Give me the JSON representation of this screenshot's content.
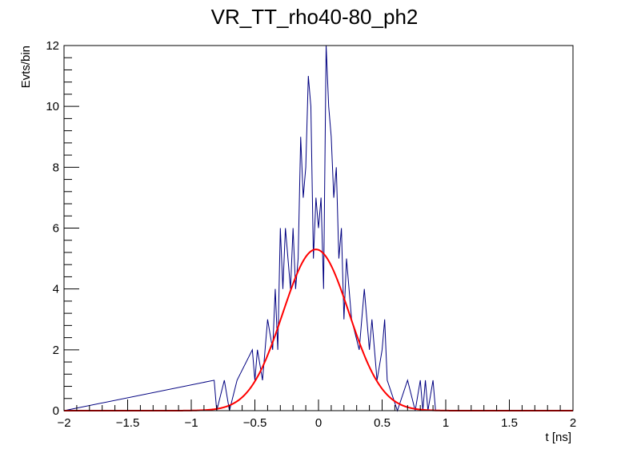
{
  "chart_data": {
    "type": "histogram",
    "title": "VR_TT_rho40-80_ph2",
    "xlabel": "t [ns]",
    "ylabel": "Evts/bin",
    "xlim": [
      -2,
      2
    ],
    "ylim": [
      0,
      12
    ],
    "x_ticks": [
      "−2",
      "−1.5",
      "−1",
      "−0.5",
      "0",
      "0.5",
      "1",
      "1.5",
      "2"
    ],
    "y_ticks": [
      "0",
      "2",
      "4",
      "6",
      "8",
      "10",
      "12"
    ],
    "grid": false,
    "colors": {
      "histogram": "#000080",
      "fit": "#ff0000",
      "axes": "#000000"
    },
    "bin_width": 0.02,
    "bins": [
      {
        "x": -0.82,
        "y": 1
      },
      {
        "x": -0.74,
        "y": 1
      },
      {
        "x": -0.72,
        "y": 1
      },
      {
        "x": -0.64,
        "y": 1
      },
      {
        "x": -0.62,
        "y": 1
      },
      {
        "x": -0.6,
        "y": 1
      },
      {
        "x": -0.58,
        "y": 1
      },
      {
        "x": -0.56,
        "y": 1
      },
      {
        "x": -0.54,
        "y": 1
      },
      {
        "x": -0.52,
        "y": 2
      },
      {
        "x": -0.5,
        "y": 1
      },
      {
        "x": -0.48,
        "y": 2
      },
      {
        "x": -0.46,
        "y": 2
      },
      {
        "x": -0.44,
        "y": 1
      },
      {
        "x": -0.42,
        "y": 2
      },
      {
        "x": -0.4,
        "y": 3
      },
      {
        "x": -0.38,
        "y": 3
      },
      {
        "x": -0.36,
        "y": 2
      },
      {
        "x": -0.34,
        "y": 4
      },
      {
        "x": -0.32,
        "y": 2
      },
      {
        "x": -0.3,
        "y": 6
      },
      {
        "x": -0.28,
        "y": 4
      },
      {
        "x": -0.26,
        "y": 6
      },
      {
        "x": -0.24,
        "y": 5
      },
      {
        "x": -0.22,
        "y": 4
      },
      {
        "x": -0.2,
        "y": 6
      },
      {
        "x": -0.18,
        "y": 4
      },
      {
        "x": -0.16,
        "y": 5
      },
      {
        "x": -0.14,
        "y": 9
      },
      {
        "x": -0.12,
        "y": 7
      },
      {
        "x": -0.1,
        "y": 8
      },
      {
        "x": -0.08,
        "y": 11
      },
      {
        "x": -0.06,
        "y": 10
      },
      {
        "x": -0.04,
        "y": 5
      },
      {
        "x": -0.02,
        "y": 7
      },
      {
        "x": 0.0,
        "y": 6
      },
      {
        "x": 0.02,
        "y": 7
      },
      {
        "x": 0.04,
        "y": 4
      },
      {
        "x": 0.06,
        "y": 12
      },
      {
        "x": 0.08,
        "y": 10
      },
      {
        "x": 0.1,
        "y": 9
      },
      {
        "x": 0.12,
        "y": 7
      },
      {
        "x": 0.14,
        "y": 8
      },
      {
        "x": 0.16,
        "y": 5
      },
      {
        "x": 0.18,
        "y": 6
      },
      {
        "x": 0.2,
        "y": 3
      },
      {
        "x": 0.22,
        "y": 5
      },
      {
        "x": 0.24,
        "y": 4
      },
      {
        "x": 0.26,
        "y": 3
      },
      {
        "x": 0.28,
        "y": 3
      },
      {
        "x": 0.3,
        "y": 3
      },
      {
        "x": 0.32,
        "y": 2
      },
      {
        "x": 0.34,
        "y": 3
      },
      {
        "x": 0.36,
        "y": 4
      },
      {
        "x": 0.38,
        "y": 3
      },
      {
        "x": 0.4,
        "y": 2
      },
      {
        "x": 0.42,
        "y": 3
      },
      {
        "x": 0.44,
        "y": 2
      },
      {
        "x": 0.46,
        "y": 1
      },
      {
        "x": 0.48,
        "y": 1
      },
      {
        "x": 0.5,
        "y": 2
      },
      {
        "x": 0.52,
        "y": 3
      },
      {
        "x": 0.54,
        "y": 1
      },
      {
        "x": 0.56,
        "y": 1
      },
      {
        "x": 0.58,
        "y": 1
      },
      {
        "x": 0.6,
        "y": 1
      },
      {
        "x": 0.7,
        "y": 1
      },
      {
        "x": 0.72,
        "y": 1
      },
      {
        "x": 0.74,
        "y": 1
      },
      {
        "x": 0.8,
        "y": 1
      },
      {
        "x": 0.84,
        "y": 1
      },
      {
        "x": 0.9,
        "y": 1
      }
    ],
    "fit": {
      "function": "gaussian",
      "amplitude": 5.3,
      "mean": -0.02,
      "sigma": 0.26
    }
  }
}
